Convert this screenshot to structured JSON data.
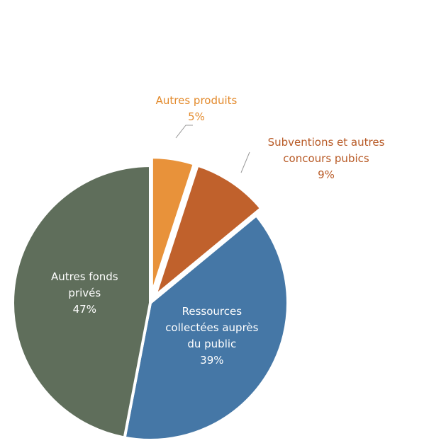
{
  "chart_data": {
    "type": "pie",
    "title": "",
    "slices": [
      {
        "label_lines": [
          "Autres produits",
          "5%"
        ],
        "value": 5,
        "color": "#E8923A",
        "label_color": "#E38A2C",
        "exploded": true,
        "label_outside": true
      },
      {
        "label_lines": [
          "Subventions et autres",
          "concours pubics",
          "9%"
        ],
        "value": 9,
        "color": "#C0612C",
        "label_color": "#B85A26",
        "exploded": true,
        "label_outside": true
      },
      {
        "label_lines": [
          "Ressources",
          "collectées auprès",
          "du public",
          "39%"
        ],
        "value": 39,
        "color": "#4577A6",
        "label_color": "#ffffff",
        "exploded": false,
        "label_outside": false
      },
      {
        "label_lines": [
          "Autres fonds",
          "privés",
          "47%"
        ],
        "value": 47,
        "color": "#5F6E5B",
        "label_color": "#ffffff",
        "exploded": false,
        "label_outside": false
      }
    ],
    "start": "12 o'clock",
    "direction": "clockwise",
    "legend": "none"
  }
}
